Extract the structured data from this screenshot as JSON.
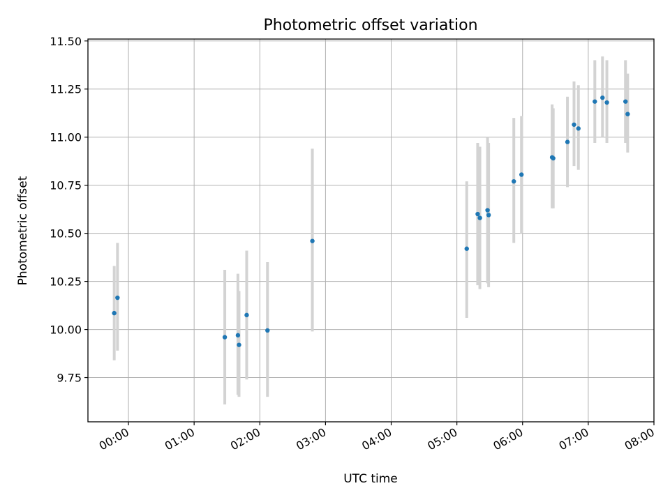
{
  "chart_data": {
    "type": "scatter",
    "title": "Photometric offset variation",
    "xlabel": "UTC time",
    "ylabel": "Photometric offset",
    "x_ticks": [
      "00:00",
      "01:00",
      "02:00",
      "03:00",
      "04:00",
      "05:00",
      "06:00",
      "07:00",
      "08:00"
    ],
    "y_ticks": [
      "9.75",
      "10.00",
      "10.25",
      "10.50",
      "10.75",
      "11.00",
      "11.25",
      "11.50"
    ],
    "xlim": [
      "-00:37",
      "08:00"
    ],
    "ylim": [
      9.52,
      11.51
    ],
    "grid": true,
    "colors": {
      "point": "#1f77b4",
      "errorbar": "#d3d3d3",
      "grid": "#b0b0b0"
    },
    "series": [
      {
        "points": [
          {
            "x": "-00:13",
            "y": 10.085,
            "yerr_low": 9.84,
            "yerr_high": 10.33
          },
          {
            "x": "-00:10",
            "y": 10.165,
            "yerr_low": 9.89,
            "yerr_high": 10.45
          },
          {
            "x": "01:28",
            "y": 9.96,
            "yerr_low": 9.61,
            "yerr_high": 10.31
          },
          {
            "x": "01:40",
            "y": 9.97,
            "yerr_low": 9.66,
            "yerr_high": 10.29
          },
          {
            "x": "01:41",
            "y": 9.92,
            "yerr_low": 9.65,
            "yerr_high": 10.2
          },
          {
            "x": "01:48",
            "y": 10.075,
            "yerr_low": 9.74,
            "yerr_high": 10.41
          },
          {
            "x": "02:07",
            "y": 9.995,
            "yerr_low": 9.65,
            "yerr_high": 10.35
          },
          {
            "x": "02:48",
            "y": 10.46,
            "yerr_low": 9.99,
            "yerr_high": 10.94
          },
          {
            "x": "05:09",
            "y": 10.42,
            "yerr_low": 10.06,
            "yerr_high": 10.77
          },
          {
            "x": "05:19",
            "y": 10.6,
            "yerr_low": 10.23,
            "yerr_high": 10.97
          },
          {
            "x": "05:21",
            "y": 10.58,
            "yerr_low": 10.21,
            "yerr_high": 10.95
          },
          {
            "x": "05:28",
            "y": 10.62,
            "yerr_low": 10.24,
            "yerr_high": 11.0
          },
          {
            "x": "05:29",
            "y": 10.595,
            "yerr_low": 10.22,
            "yerr_high": 10.97
          },
          {
            "x": "05:52",
            "y": 10.77,
            "yerr_low": 10.45,
            "yerr_high": 11.1
          },
          {
            "x": "05:59",
            "y": 10.805,
            "yerr_low": 10.5,
            "yerr_high": 11.11
          },
          {
            "x": "06:27",
            "y": 10.895,
            "yerr_low": 10.63,
            "yerr_high": 11.17
          },
          {
            "x": "06:28",
            "y": 10.89,
            "yerr_low": 10.63,
            "yerr_high": 11.15
          },
          {
            "x": "06:41",
            "y": 10.975,
            "yerr_low": 10.74,
            "yerr_high": 11.21
          },
          {
            "x": "06:47",
            "y": 11.065,
            "yerr_low": 10.85,
            "yerr_high": 11.29
          },
          {
            "x": "06:51",
            "y": 11.045,
            "yerr_low": 10.83,
            "yerr_high": 11.27
          },
          {
            "x": "07:06",
            "y": 11.185,
            "yerr_low": 10.97,
            "yerr_high": 11.4
          },
          {
            "x": "07:13",
            "y": 11.205,
            "yerr_low": 11.0,
            "yerr_high": 11.42
          },
          {
            "x": "07:17",
            "y": 11.18,
            "yerr_low": 10.97,
            "yerr_high": 11.4
          },
          {
            "x": "07:34",
            "y": 11.185,
            "yerr_low": 10.97,
            "yerr_high": 11.4
          },
          {
            "x": "07:36",
            "y": 11.12,
            "yerr_low": 10.92,
            "yerr_high": 11.33
          }
        ]
      }
    ]
  }
}
